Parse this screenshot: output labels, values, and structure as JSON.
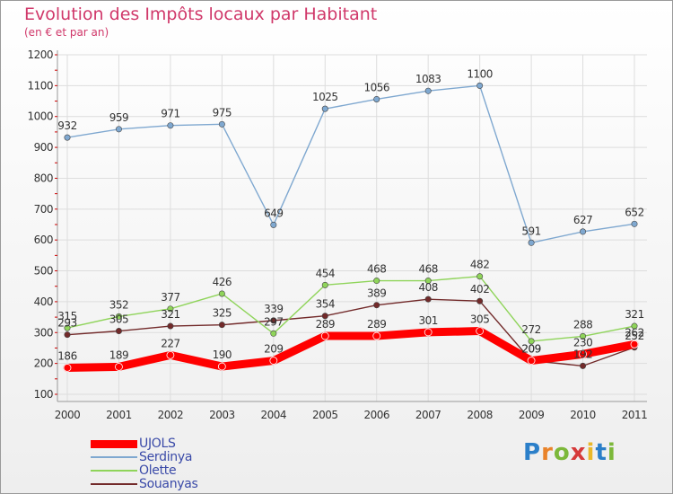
{
  "title": "Evolution des Impôts locaux par Habitant",
  "subtitle": "(en € et par an)",
  "logo": {
    "letters": [
      "P",
      "r",
      "o",
      "x",
      "i",
      "t",
      "i"
    ],
    "colors": [
      "#2b7fc9",
      "#e9832a",
      "#7cb83a",
      "#d63a3a",
      "#e9b82a",
      "#2b7fc9",
      "#7cb83a"
    ]
  },
  "chart_data": {
    "type": "line",
    "title": "Evolution des Impôts locaux par Habitant",
    "subtitle": "(en € et par an)",
    "xlabel": "",
    "ylabel": "",
    "categories": [
      "2000",
      "2001",
      "2002",
      "2003",
      "2004",
      "2005",
      "2006",
      "2007",
      "2008",
      "2009",
      "2010",
      "2011"
    ],
    "ylim": [
      100,
      1200
    ],
    "yticks": [
      100,
      200,
      300,
      400,
      500,
      600,
      700,
      800,
      900,
      1000,
      1100,
      1200
    ],
    "grid": true,
    "legend": "bottom-left",
    "series": [
      {
        "name": "Souanyas",
        "color": "#722a2a",
        "width": 1.4,
        "values": [
          293,
          305,
          321,
          325,
          339,
          354,
          389,
          408,
          402,
          209,
          192,
          252
        ],
        "labels": [
          "293",
          "305",
          "321",
          "325",
          "339",
          "354",
          "389",
          "408",
          "402",
          "209",
          "192",
          "252"
        ]
      },
      {
        "name": "Olette",
        "color": "#8fd45a",
        "width": 1.4,
        "values": [
          315,
          352,
          377,
          426,
          297,
          454,
          468,
          468,
          482,
          272,
          288,
          321
        ],
        "labels": [
          "315",
          "352",
          "377",
          "426",
          "297",
          "454",
          "468",
          "468",
          "482",
          "272",
          "288",
          "321"
        ]
      },
      {
        "name": "Serdinya",
        "color": "#7fa8d0",
        "width": 1.4,
        "values": [
          932,
          959,
          971,
          975,
          649,
          1025,
          1056,
          1083,
          1100,
          591,
          627,
          652
        ],
        "labels": [
          "932",
          "959",
          "971",
          "975",
          "649",
          "1025",
          "1056",
          "1083",
          "1100",
          "591",
          "627",
          "652"
        ]
      },
      {
        "name": "UJOLS",
        "color": "#ff0000",
        "width": 9,
        "values": [
          186,
          189,
          227,
          190,
          209,
          289,
          289,
          301,
          305,
          209,
          230,
          262
        ],
        "labels": [
          "186",
          "189",
          "227",
          "190",
          "209",
          "289",
          "289",
          "301",
          "305",
          "209",
          "230",
          "262"
        ]
      }
    ],
    "legend_order": [
      "UJOLS",
      "Serdinya",
      "Olette",
      "Souanyas"
    ]
  }
}
